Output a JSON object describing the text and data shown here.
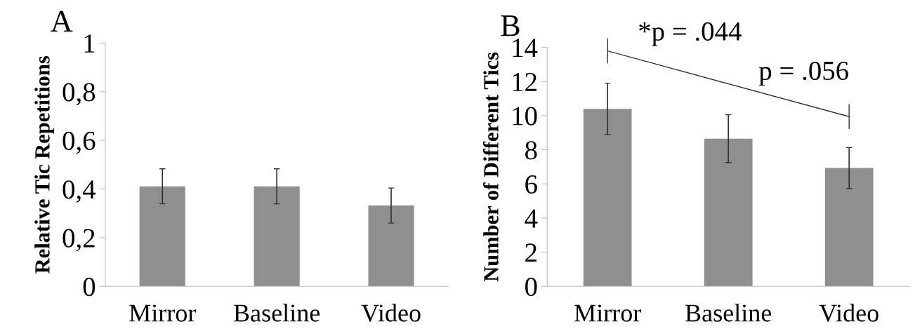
{
  "chart_data": [
    {
      "type": "bar",
      "title": "A",
      "ylabel": "Relative Tic Repetitions",
      "categories": [
        "Mirror",
        "Baseline",
        "Video"
      ],
      "values": [
        0.411,
        0.411,
        0.332
      ],
      "errors": [
        0.072,
        0.072,
        0.072
      ],
      "color": "#8f8f8f",
      "ylim": [
        0,
        1
      ],
      "yticks": [
        0,
        {
          "value": 0.2,
          "label": "0,2"
        },
        {
          "value": 0.4,
          "label": "0,4"
        },
        {
          "value": 0.6,
          "label": "0,6"
        },
        {
          "value": 0.8,
          "label": "0,8"
        },
        1
      ],
      "grid": false,
      "legend": false
    },
    {
      "type": "bar",
      "title": "B",
      "ylabel": "Number of Different Tics",
      "categories": [
        "Mirror",
        "Baseline",
        "Video"
      ],
      "values": [
        10.4,
        8.65,
        6.93
      ],
      "errors": [
        1.5,
        1.4,
        1.2
      ],
      "color": "#8f8f8f",
      "ylim": [
        0,
        14
      ],
      "yticks": [
        0,
        2,
        4,
        6,
        8,
        10,
        12,
        14
      ],
      "grid": false,
      "legend": false,
      "annotations": [
        "*p = .044",
        "p = .056"
      ]
    }
  ]
}
